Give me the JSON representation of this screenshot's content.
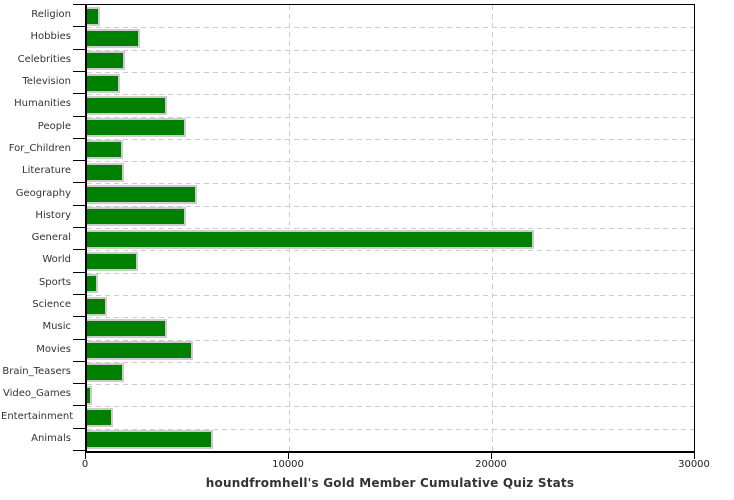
{
  "chart_data": {
    "type": "bar",
    "orientation": "horizontal",
    "title": "houndfromhell's Gold Member Cumulative Quiz Stats",
    "categories": [
      "Religion",
      "Hobbies",
      "Celebrities",
      "Television",
      "Humanities",
      "People",
      "For_Children",
      "Literature",
      "Geography",
      "History",
      "General",
      "World",
      "Sports",
      "Science",
      "Music",
      "Movies",
      "Brain_Teasers",
      "Video_Games",
      "Entertainment",
      "Animals"
    ],
    "values": [
      650,
      2600,
      1900,
      1650,
      3950,
      4900,
      1800,
      1850,
      5450,
      4900,
      22100,
      2500,
      550,
      1000,
      3950,
      5250,
      1850,
      250,
      1300,
      6250
    ],
    "xlabel": "",
    "ylabel": "",
    "xlim": [
      0,
      30000
    ],
    "x_ticks": [
      0,
      10000,
      20000,
      30000
    ],
    "x_tick_labels": [
      "0",
      "10000",
      "20000",
      "30000"
    ],
    "grid": "dashed",
    "legend": "none",
    "colors": {
      "bar_fill": "#008000",
      "bar_border": "#cccccc",
      "grid": "#cccccc",
      "axis": "#000000",
      "text": "#333333"
    }
  }
}
